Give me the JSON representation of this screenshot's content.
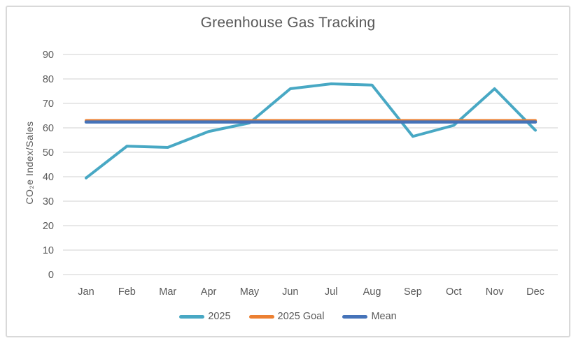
{
  "chart_data": {
    "type": "line",
    "title": "Greenhouse Gas Tracking",
    "ylabel": "CO₂e Index/Sales",
    "xlabel": "",
    "categories": [
      "Jan",
      "Feb",
      "Mar",
      "Apr",
      "May",
      "Jun",
      "Jul",
      "Aug",
      "Sep",
      "Oct",
      "Nov",
      "Dec"
    ],
    "series": [
      {
        "name": "2025",
        "color": "#48A8C4",
        "width": 4,
        "values": [
          39.5,
          52.5,
          52,
          58.5,
          62,
          76,
          78,
          77.5,
          56.5,
          61,
          76,
          59
        ]
      },
      {
        "name": "2025 Goal",
        "color": "#EC8032",
        "width": 4,
        "values": [
          63,
          63,
          63,
          63,
          63,
          63,
          63,
          63,
          63,
          63,
          63,
          63
        ]
      },
      {
        "name": "Mean",
        "color": "#4573B9",
        "width": 4.5,
        "values": [
          62.4,
          62.4,
          62.4,
          62.4,
          62.4,
          62.4,
          62.4,
          62.4,
          62.4,
          62.4,
          62.4,
          62.4
        ]
      }
    ],
    "ylim": [
      0,
      90
    ],
    "yticks": [
      0,
      10,
      20,
      30,
      40,
      50,
      60,
      70,
      80,
      90
    ],
    "grid": "horizontal",
    "legend_position": "bottom",
    "gridline_color": "#E0E0E0",
    "text_color": "#595959"
  }
}
